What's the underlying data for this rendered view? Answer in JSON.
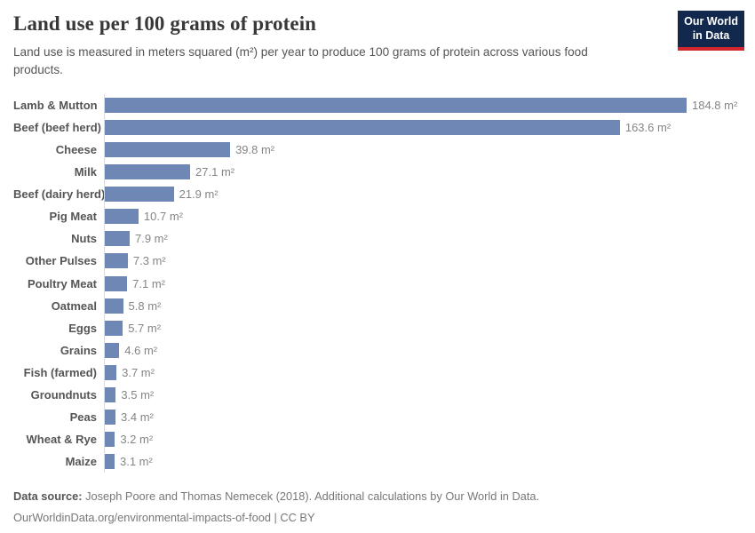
{
  "header": {
    "title": "Land use per 100 grams of protein",
    "subtitle": "Land use is measured in meters squared (m²) per year to produce 100 grams of protein across various food products.",
    "logo": {
      "line1": "Our World",
      "line2": "in Data",
      "bg_color": "#12294d",
      "accent_color": "#d2262c"
    }
  },
  "chart_data": {
    "type": "bar",
    "orientation": "horizontal",
    "title": "Land use per 100 grams of protein",
    "xlabel": "",
    "ylabel": "",
    "categories": [
      "Lamb & Mutton",
      "Beef (beef herd)",
      "Cheese",
      "Milk",
      "Beef (dairy herd)",
      "Pig Meat",
      "Nuts",
      "Other Pulses",
      "Poultry Meat",
      "Oatmeal",
      "Eggs",
      "Grains",
      "Fish (farmed)",
      "Groundnuts",
      "Peas",
      "Wheat & Rye",
      "Maize"
    ],
    "values": [
      184.8,
      163.6,
      39.8,
      27.1,
      21.9,
      10.7,
      7.9,
      7.3,
      7.1,
      5.8,
      5.7,
      4.6,
      3.7,
      3.5,
      3.4,
      3.2,
      3.1
    ],
    "value_suffix": " m²",
    "xlim": [
      0,
      203
    ],
    "grid": false,
    "legend": "none",
    "bar_color": "#6e87b4",
    "axis_line_color": "#dbdbdb",
    "label_color": "#555555",
    "value_label_color": "#858585"
  },
  "footer": {
    "source_label": "Data source:",
    "source_text": " Joseph Poore and Thomas Nemecek (2018). Additional calculations by Our World in Data.",
    "link_line": "OurWorldinData.org/environmental-impacts-of-food | CC BY"
  }
}
